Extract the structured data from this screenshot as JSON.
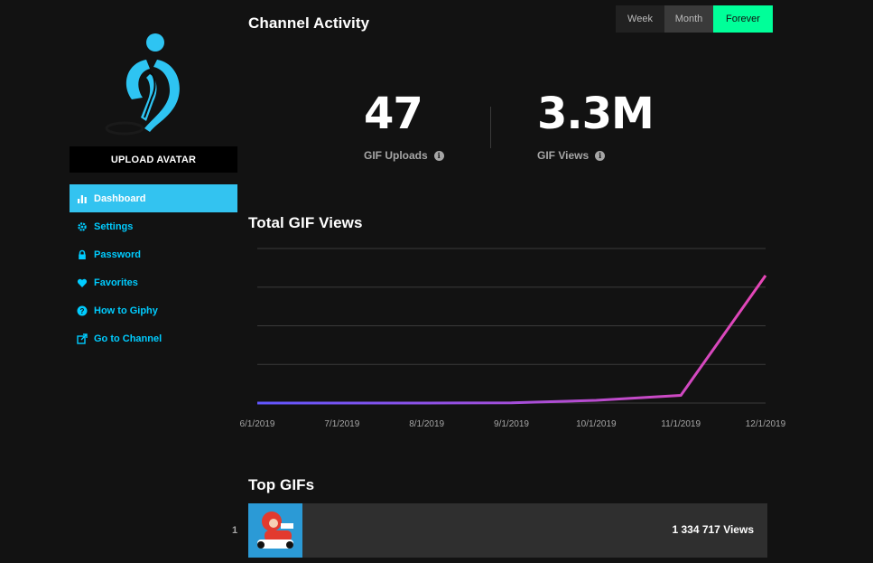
{
  "sidebar": {
    "upload_label": "UPLOAD AVATAR",
    "items": [
      {
        "label": "Dashboard",
        "icon": "bar-chart-icon",
        "active": true
      },
      {
        "label": "Settings",
        "icon": "gear-icon"
      },
      {
        "label": "Password",
        "icon": "lock-icon"
      },
      {
        "label": "Favorites",
        "icon": "heart-icon"
      },
      {
        "label": "How to Giphy",
        "icon": "question-icon"
      },
      {
        "label": "Go to Channel",
        "icon": "external-link-icon"
      }
    ]
  },
  "activity": {
    "title": "Channel Activity",
    "ranges": [
      "Week",
      "Month",
      "Forever"
    ],
    "selected_range": "Forever",
    "uploads": {
      "value": "47",
      "label": "GIF Uploads"
    },
    "views": {
      "value": "3.3M",
      "label": "GIF Views"
    }
  },
  "total_views": {
    "title": "Total GIF Views"
  },
  "chart_data": {
    "type": "line",
    "x": [
      "6/1/2019",
      "7/1/2019",
      "8/1/2019",
      "9/1/2019",
      "10/1/2019",
      "11/1/2019",
      "12/1/2019"
    ],
    "series": [
      {
        "values": [
          0,
          0,
          0,
          0.005,
          0.07,
          0.2,
          3.3
        ]
      }
    ],
    "ylim": [
      0,
      4
    ],
    "grid": true,
    "colors": {
      "start": "#6157ff",
      "end": "#e646b6"
    }
  },
  "top_gifs": {
    "title": "Top GIFs",
    "items": [
      {
        "rank": "1",
        "views": "1 334 717 Views"
      }
    ]
  }
}
